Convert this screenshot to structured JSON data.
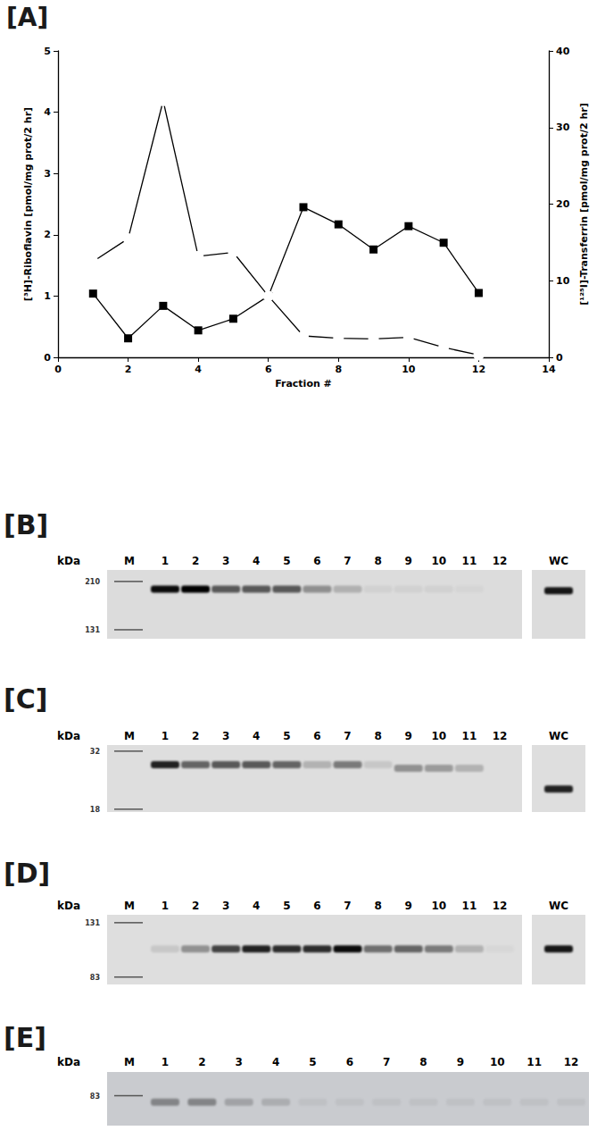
{
  "chart_data": {
    "type": "line",
    "title": "[A]",
    "x": [
      1,
      2,
      3,
      4,
      5,
      6,
      7,
      8,
      9,
      10,
      11,
      12
    ],
    "xlabel": "Fraction #",
    "ylabel": "[³H]-Riboflavin [pmol/mg prot/2 hr]",
    "y2label": "[¹²⁵I]-Transferrin [pmol/mg prot/2 hr]",
    "xlim": [
      0,
      14
    ],
    "xticks": [
      0,
      2,
      4,
      6,
      8,
      10,
      12,
      14
    ],
    "ylim": [
      0,
      5
    ],
    "yticks": [
      0,
      1,
      2,
      3,
      4,
      5
    ],
    "y2lim": [
      0,
      40
    ],
    "y2ticks": [
      0,
      10,
      20,
      30,
      40
    ],
    "grid": false,
    "series": [
      {
        "color": "#000000",
        "marker": "square",
        "values": [
          1.04,
          0.31,
          0.84,
          0.44,
          0.63,
          1.0,
          2.45,
          2.17,
          1.76,
          2.14,
          1.87,
          1.05
        ]
      },
      {
        "axis": "y2",
        "color": "#000000",
        "marker": "open circle",
        "values": [
          12.5,
          15.5,
          33.5,
          13.2,
          13.7,
          8.0,
          2.8,
          2.5,
          2.4,
          2.6,
          1.3,
          0.3
        ]
      }
    ]
  },
  "blots": [
    {
      "label": "[B]",
      "unit": "kDa",
      "marker_lane": "M",
      "markers": [
        210,
        131
      ],
      "ylim": [
        235,
        120
      ],
      "lanes": [
        {
          "label": "1",
          "kda": 195,
          "intensity": 0.95
        },
        {
          "label": "2",
          "kda": 195,
          "intensity": 1.0
        },
        {
          "label": "3",
          "kda": 195,
          "intensity": 0.6
        },
        {
          "label": "4",
          "kda": 195,
          "intensity": 0.6
        },
        {
          "label": "5",
          "kda": 195,
          "intensity": 0.6
        },
        {
          "label": "6",
          "kda": 195,
          "intensity": 0.35
        },
        {
          "label": "7",
          "kda": 195,
          "intensity": 0.2
        },
        {
          "label": "8",
          "kda": 195,
          "intensity": 0.05
        },
        {
          "label": "9",
          "kda": 195,
          "intensity": 0.05
        },
        {
          "label": "10",
          "kda": 195,
          "intensity": 0.05
        },
        {
          "label": "11",
          "kda": 195,
          "intensity": 0.03
        },
        {
          "label": "12",
          "kda": 195,
          "intensity": 0
        },
        {
          "label": "WC",
          "kda": 192,
          "intensity": 0.9
        }
      ]
    },
    {
      "label": "[C]",
      "unit": "kDa",
      "marker_lane": "M",
      "markers": [
        32,
        18
      ],
      "ylim": [
        34,
        17.5
      ],
      "lanes": [
        {
          "label": "1",
          "kda": 28,
          "intensity": 0.85
        },
        {
          "label": "2",
          "kda": 28,
          "intensity": 0.55
        },
        {
          "label": "3",
          "kda": 28,
          "intensity": 0.6
        },
        {
          "label": "4",
          "kda": 28,
          "intensity": 0.6
        },
        {
          "label": "5",
          "kda": 28,
          "intensity": 0.55
        },
        {
          "label": "6",
          "kda": 28,
          "intensity": 0.2
        },
        {
          "label": "7",
          "kda": 28,
          "intensity": 0.45
        },
        {
          "label": "8",
          "kda": 28,
          "intensity": 0.1
        },
        {
          "label": "9",
          "kda": 27,
          "intensity": 0.35
        },
        {
          "label": "10",
          "kda": 27,
          "intensity": 0.3
        },
        {
          "label": "11",
          "kda": 27,
          "intensity": 0.2
        },
        {
          "label": "12",
          "kda": 27,
          "intensity": 0
        },
        {
          "label": "WC",
          "kda": 22,
          "intensity": 0.85
        }
      ]
    },
    {
      "label": "[D]",
      "unit": "kDa",
      "marker_lane": "M",
      "markers": [
        131,
        83
      ],
      "ylim": [
        140,
        78
      ],
      "lanes": [
        {
          "label": "1",
          "kda": 105,
          "intensity": 0.1
        },
        {
          "label": "2",
          "kda": 105,
          "intensity": 0.35
        },
        {
          "label": "3",
          "kda": 105,
          "intensity": 0.7
        },
        {
          "label": "4",
          "kda": 105,
          "intensity": 0.85
        },
        {
          "label": "5",
          "kda": 105,
          "intensity": 0.8
        },
        {
          "label": "6",
          "kda": 105,
          "intensity": 0.8
        },
        {
          "label": "7",
          "kda": 105,
          "intensity": 0.95
        },
        {
          "label": "8",
          "kda": 105,
          "intensity": 0.5
        },
        {
          "label": "9",
          "kda": 105,
          "intensity": 0.55
        },
        {
          "label": "10",
          "kda": 105,
          "intensity": 0.45
        },
        {
          "label": "11",
          "kda": 105,
          "intensity": 0.2
        },
        {
          "label": "12",
          "kda": 105,
          "intensity": 0.03
        },
        {
          "label": "WC",
          "kda": 105,
          "intensity": 0.9
        }
      ]
    },
    {
      "label": "[E]",
      "unit": "kDa",
      "marker_lane": "M",
      "markers": [
        83
      ],
      "ylim": [
        95,
        70
      ],
      "lanes": [
        {
          "label": "1",
          "kda": 80,
          "intensity": 0.35
        },
        {
          "label": "2",
          "kda": 80,
          "intensity": 0.35
        },
        {
          "label": "3",
          "kda": 80,
          "intensity": 0.2
        },
        {
          "label": "4",
          "kda": 80,
          "intensity": 0.15
        },
        {
          "label": "5",
          "kda": 80,
          "intensity": 0.05
        },
        {
          "label": "6",
          "kda": 80,
          "intensity": 0.05
        },
        {
          "label": "7",
          "kda": 80,
          "intensity": 0.05
        },
        {
          "label": "8",
          "kda": 80,
          "intensity": 0.05
        },
        {
          "label": "9",
          "kda": 80,
          "intensity": 0.05
        },
        {
          "label": "10",
          "kda": 80,
          "intensity": 0.05
        },
        {
          "label": "11",
          "kda": 80,
          "intensity": 0.05
        },
        {
          "label": "12",
          "kda": 80,
          "intensity": 0.05
        }
      ]
    }
  ]
}
